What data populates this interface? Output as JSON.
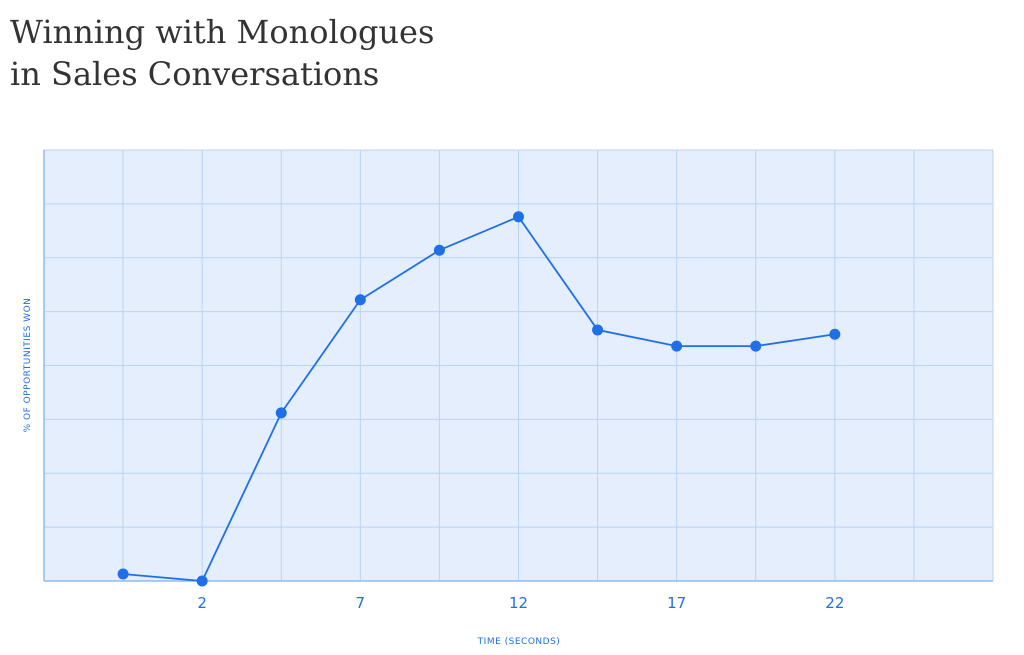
{
  "chart_data": {
    "type": "line",
    "title": [
      "Winning with Monologues",
      "in Sales Conversations"
    ],
    "x_label": "TIME (SECONDS)",
    "y_label": "% OF OPPORTUNITIES WON",
    "x": [
      -0.5,
      2,
      4.5,
      7,
      9.5,
      12,
      14.5,
      17,
      19.5,
      22
    ],
    "series": [
      {
        "color": "#1f6fe8",
        "values": [
          0.13,
          0,
          3.12,
          5.22,
          6.14,
          6.76,
          4.66,
          4.36,
          4.36,
          4.58
        ]
      }
    ],
    "xlim": [
      -3,
      27
    ],
    "xticks": [
      {
        "value": -3,
        "label": null
      },
      {
        "value": -0.5,
        "label": null
      },
      2,
      {
        "value": 4.5,
        "label": null
      },
      7,
      {
        "value": 9.5,
        "label": null
      },
      12,
      {
        "value": 14.5,
        "label": null
      },
      17,
      {
        "value": 19.5,
        "label": null
      },
      22,
      {
        "value": 24.5,
        "label": null
      },
      {
        "value": 27,
        "label": null
      }
    ],
    "ylim": [
      0,
      8
    ],
    "yticks": [
      {
        "value": 0,
        "label": null
      },
      {
        "value": 1,
        "label": null
      },
      {
        "value": 2,
        "label": null
      },
      {
        "value": 3,
        "label": null
      },
      {
        "value": 4,
        "label": null
      },
      {
        "value": 5,
        "label": null
      },
      {
        "value": 6,
        "label": null
      },
      {
        "value": 7,
        "label": null
      },
      {
        "value": 8,
        "label": null
      }
    ],
    "grid": true
  }
}
